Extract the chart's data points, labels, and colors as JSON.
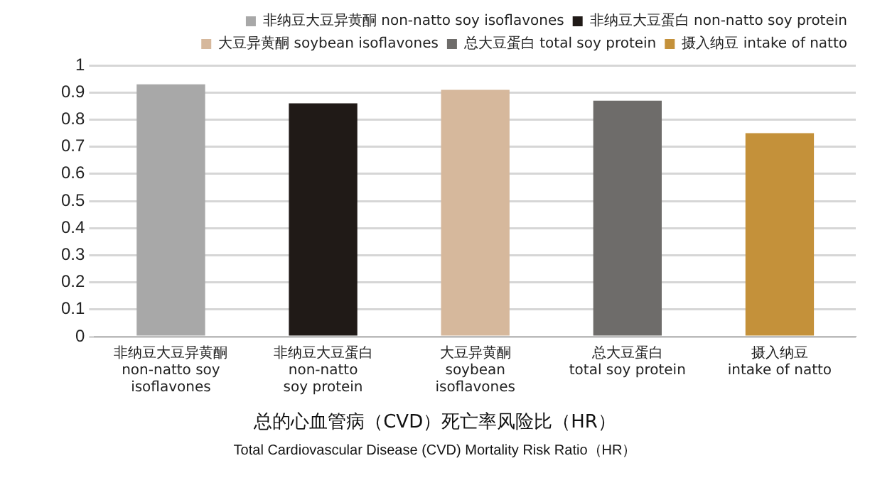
{
  "chart_data": {
    "type": "bar",
    "title": "总的心血管病（CVD）死亡率风险比（HR）",
    "subtitle": "Total Cardiovascular Disease (CVD) Mortality Risk Ratio（HR）",
    "categories": [
      "非纳豆大豆异黄酮\nnon-natto soy isoflavones",
      "非纳豆大豆蛋白\nnon-natto soy protein",
      "大豆异黄酮\nsoybean isoflavones",
      "总大豆蛋白\ntotal soy protein",
      "摄入纳豆\nintake of natto"
    ],
    "series": [
      {
        "name": "非纳豆大豆异黄酮 non-natto soy isoflavones",
        "color": "#a8a8a8",
        "values": [
          0.93,
          null,
          null,
          null,
          null
        ]
      },
      {
        "name": "非纳豆大豆蛋白 non-natto soy protein",
        "color": "#201a17",
        "values": [
          null,
          0.86,
          null,
          null,
          null
        ]
      },
      {
        "name": "大豆异黄酮 soybean isoflavones",
        "color": "#d6b89c",
        "values": [
          null,
          null,
          0.91,
          null,
          null
        ]
      },
      {
        "name": "总大豆蛋白 total soy protein",
        "color": "#6e6c6a",
        "values": [
          null,
          null,
          null,
          0.87,
          null
        ]
      },
      {
        "name": "摄入纳豆 intake of natto",
        "color": "#c4913a",
        "values": [
          null,
          null,
          null,
          null,
          0.75
        ]
      }
    ],
    "ylim": [
      0,
      1
    ],
    "yticks": [
      0,
      0.1,
      0.2,
      0.3,
      0.4,
      0.5,
      0.6,
      0.7,
      0.8,
      0.9,
      1
    ],
    "grid": "y",
    "legend": "top right"
  }
}
